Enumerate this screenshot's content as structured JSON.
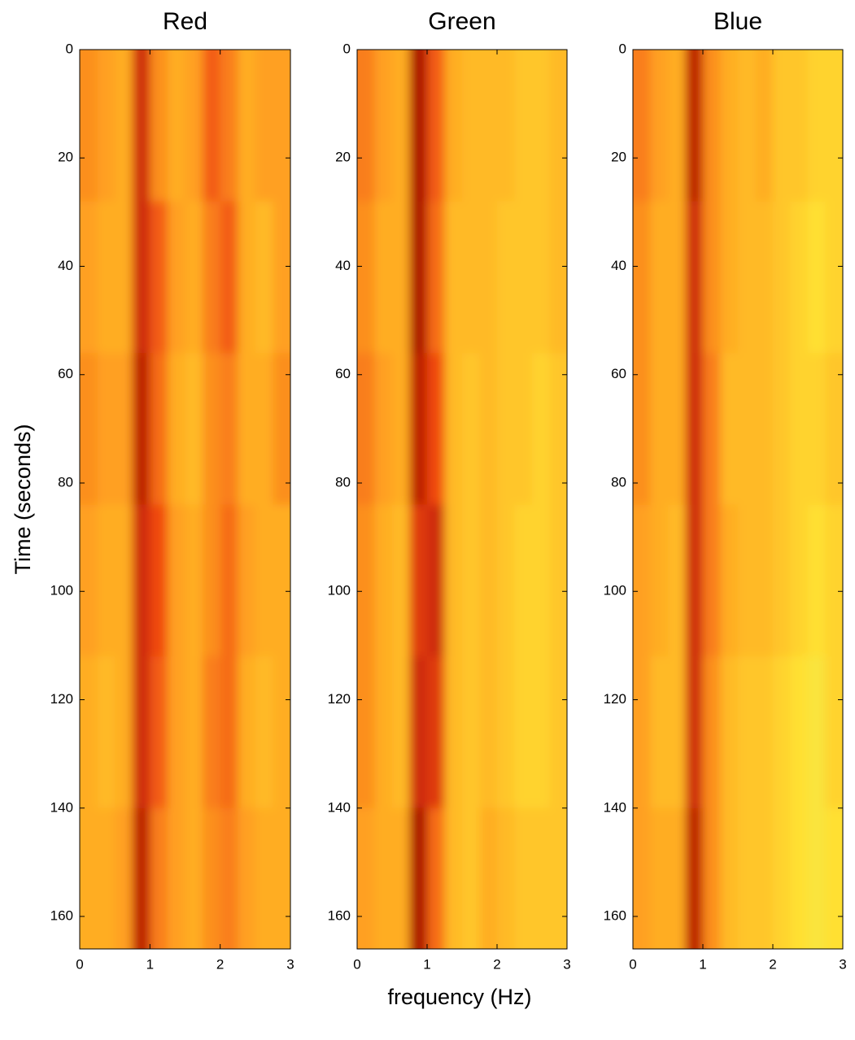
{
  "chart_data": [
    {
      "type": "heatmap",
      "title": "Red",
      "ylabel": "Time (seconds)",
      "x_bins": [
        0,
        0.25,
        0.5,
        0.75,
        1,
        1.25,
        1.5,
        1.75,
        2,
        2.25,
        2.5,
        2.75,
        3
      ],
      "y_bins": [
        0,
        28,
        56,
        84,
        112,
        140,
        166
      ],
      "values": [
        [
          0.55,
          0.5,
          0.45,
          0.85,
          0.55,
          0.45,
          0.5,
          0.7,
          0.6,
          0.45,
          0.5,
          0.5
        ],
        [
          0.5,
          0.45,
          0.45,
          0.85,
          0.7,
          0.5,
          0.45,
          0.6,
          0.7,
          0.45,
          0.4,
          0.5
        ],
        [
          0.55,
          0.5,
          0.5,
          0.9,
          0.65,
          0.45,
          0.4,
          0.55,
          0.6,
          0.45,
          0.45,
          0.55
        ],
        [
          0.5,
          0.45,
          0.45,
          0.85,
          0.75,
          0.5,
          0.45,
          0.55,
          0.65,
          0.5,
          0.45,
          0.45
        ],
        [
          0.45,
          0.4,
          0.45,
          0.85,
          0.7,
          0.5,
          0.45,
          0.6,
          0.65,
          0.45,
          0.4,
          0.45
        ],
        [
          0.45,
          0.45,
          0.5,
          0.9,
          0.6,
          0.5,
          0.45,
          0.55,
          0.6,
          0.5,
          0.45,
          0.45
        ]
      ],
      "colormap": [
        "#dff270",
        "#ffe030",
        "#ffa020",
        "#f04a10",
        "#9a0000"
      ],
      "clim": [
        0,
        1
      ],
      "xlim": [
        0,
        3
      ],
      "ylim": [
        0,
        166
      ],
      "xticks": [
        0,
        1,
        2,
        3
      ],
      "yticks": [
        0,
        20,
        40,
        60,
        80,
        100,
        120,
        140,
        160
      ]
    },
    {
      "type": "heatmap",
      "title": "Green",
      "xlabel": "frequency (Hz)",
      "x_bins": [
        0,
        0.25,
        0.5,
        0.75,
        1,
        1.25,
        1.5,
        1.75,
        2,
        2.25,
        2.5,
        2.75,
        3
      ],
      "y_bins": [
        0,
        28,
        56,
        84,
        112,
        140,
        166
      ],
      "values": [
        [
          0.6,
          0.5,
          0.45,
          0.95,
          0.7,
          0.45,
          0.4,
          0.4,
          0.4,
          0.35,
          0.35,
          0.4
        ],
        [
          0.55,
          0.45,
          0.45,
          0.95,
          0.65,
          0.4,
          0.4,
          0.4,
          0.35,
          0.35,
          0.35,
          0.4
        ],
        [
          0.6,
          0.5,
          0.45,
          0.9,
          0.75,
          0.4,
          0.35,
          0.4,
          0.35,
          0.35,
          0.3,
          0.35
        ],
        [
          0.55,
          0.45,
          0.4,
          0.8,
          0.85,
          0.4,
          0.35,
          0.4,
          0.35,
          0.3,
          0.3,
          0.35
        ],
        [
          0.55,
          0.45,
          0.4,
          0.85,
          0.8,
          0.4,
          0.35,
          0.4,
          0.35,
          0.3,
          0.3,
          0.35
        ],
        [
          0.5,
          0.45,
          0.45,
          0.95,
          0.65,
          0.4,
          0.35,
          0.45,
          0.4,
          0.35,
          0.35,
          0.35
        ]
      ],
      "colormap": [
        "#dff270",
        "#ffe030",
        "#ffa020",
        "#f04a10",
        "#9a0000"
      ],
      "clim": [
        0,
        1
      ],
      "xlim": [
        0,
        3
      ],
      "ylim": [
        0,
        166
      ],
      "xticks": [
        0,
        1,
        2,
        3
      ],
      "yticks": [
        0,
        20,
        40,
        60,
        80,
        100,
        120,
        140,
        160
      ]
    },
    {
      "type": "heatmap",
      "title": "Blue",
      "x_bins": [
        0,
        0.25,
        0.5,
        0.75,
        1,
        1.25,
        1.5,
        1.75,
        2,
        2.25,
        2.5,
        2.75,
        3
      ],
      "y_bins": [
        0,
        28,
        56,
        84,
        112,
        140,
        166
      ],
      "values": [
        [
          0.6,
          0.5,
          0.45,
          0.9,
          0.55,
          0.45,
          0.4,
          0.45,
          0.35,
          0.35,
          0.3,
          0.3
        ],
        [
          0.55,
          0.45,
          0.45,
          0.85,
          0.55,
          0.45,
          0.4,
          0.4,
          0.35,
          0.3,
          0.25,
          0.3
        ],
        [
          0.55,
          0.45,
          0.45,
          0.85,
          0.6,
          0.4,
          0.4,
          0.4,
          0.35,
          0.3,
          0.3,
          0.35
        ],
        [
          0.5,
          0.45,
          0.4,
          0.85,
          0.6,
          0.45,
          0.4,
          0.4,
          0.35,
          0.3,
          0.25,
          0.3
        ],
        [
          0.5,
          0.4,
          0.4,
          0.85,
          0.55,
          0.4,
          0.35,
          0.35,
          0.3,
          0.25,
          0.2,
          0.3
        ],
        [
          0.5,
          0.45,
          0.45,
          0.9,
          0.55,
          0.4,
          0.35,
          0.35,
          0.3,
          0.25,
          0.2,
          0.25
        ]
      ],
      "colormap": [
        "#dff270",
        "#ffe030",
        "#ffa020",
        "#f04a10",
        "#9a0000"
      ],
      "clim": [
        0,
        1
      ],
      "xlim": [
        0,
        3
      ],
      "ylim": [
        0,
        166
      ],
      "xticks": [
        0,
        1,
        2,
        3
      ],
      "yticks": [
        0,
        20,
        40,
        60,
        80,
        100,
        120,
        140,
        160
      ]
    }
  ]
}
